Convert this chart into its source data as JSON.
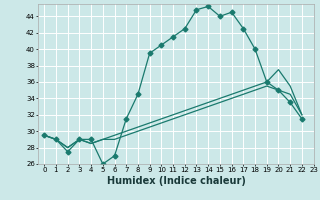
{
  "xlabel": "Humidex (Indice chaleur)",
  "bg_color": "#cce8e8",
  "grid_color": "#ffffff",
  "line_color": "#1a7a6e",
  "xlim": [
    -0.5,
    23
  ],
  "ylim": [
    26,
    45.5
  ],
  "yticks": [
    26,
    28,
    30,
    32,
    34,
    36,
    38,
    40,
    42,
    44
  ],
  "xticks": [
    0,
    1,
    2,
    3,
    4,
    5,
    6,
    7,
    8,
    9,
    10,
    11,
    12,
    13,
    14,
    15,
    16,
    17,
    18,
    19,
    20,
    21,
    22,
    23
  ],
  "series_main": [
    29.5,
    29.0,
    27.5,
    29.0,
    29.0,
    26.0,
    27.0,
    31.5,
    34.5,
    39.5,
    40.5,
    41.5,
    42.5,
    44.8,
    45.2,
    44.0,
    44.5,
    42.5,
    40.0,
    36.0,
    35.0,
    33.5,
    31.5
  ],
  "series_mid": [
    29.5,
    29.0,
    28.0,
    29.0,
    28.5,
    29.0,
    29.5,
    30.0,
    30.5,
    31.0,
    31.5,
    32.0,
    32.5,
    33.0,
    33.5,
    34.0,
    34.5,
    35.0,
    35.5,
    36.0,
    37.5,
    35.5,
    32.0
  ],
  "series_low": [
    29.5,
    29.0,
    28.0,
    29.0,
    28.5,
    29.0,
    29.0,
    29.5,
    30.0,
    30.5,
    31.0,
    31.5,
    32.0,
    32.5,
    33.0,
    33.5,
    34.0,
    34.5,
    35.0,
    35.5,
    35.0,
    34.5,
    32.0
  ],
  "marker_style": "D",
  "marker_size": 2.5,
  "xlabel_fontsize": 7,
  "tick_fontsize": 5
}
